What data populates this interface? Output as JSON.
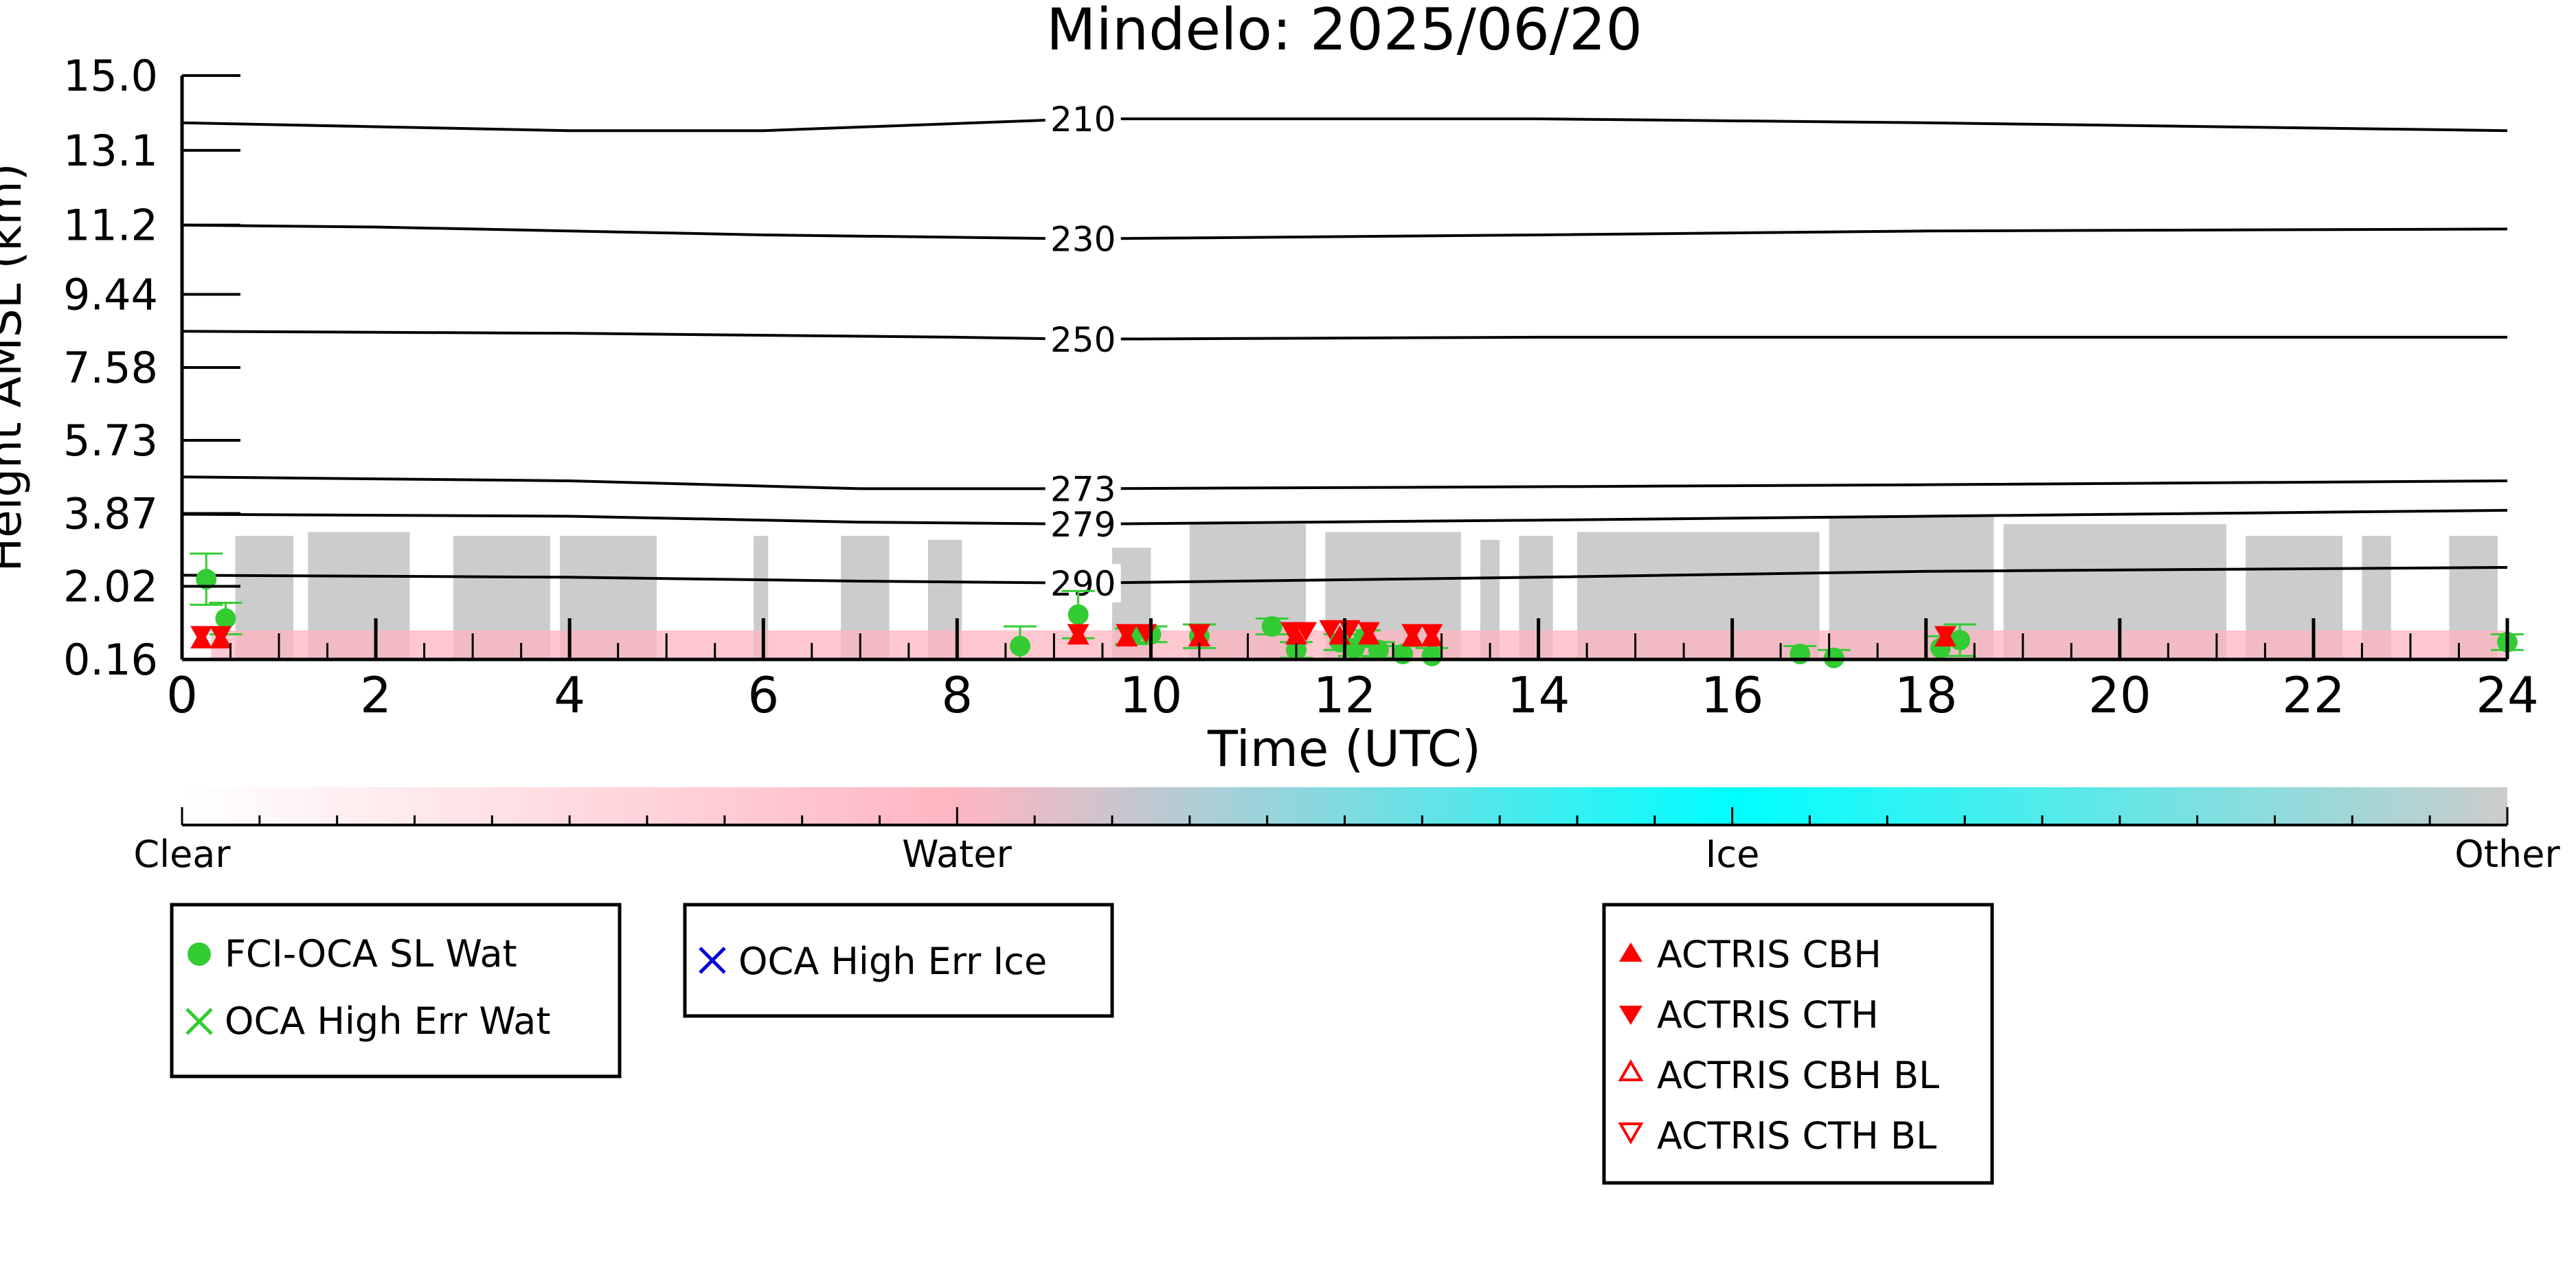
{
  "colors": {
    "marker_green": "#33cc33",
    "marker_red": "#ff0000",
    "marker_blue": "#0000dd",
    "cloud_other": "#cccccc",
    "cloud_water": "#ffb6c1",
    "cloud_ice": "#00ffff",
    "axis": "#000000"
  },
  "chart_data": {
    "type": "scatter",
    "title": "Mindelo: 2025/06/20",
    "xlabel": "Time (UTC)",
    "ylabel": "Height AMSL (km)",
    "xlim": [
      0,
      24
    ],
    "ylim": [
      0.16,
      15.0
    ],
    "xticks": [
      0,
      2,
      4,
      6,
      8,
      10,
      12,
      14,
      16,
      18,
      20,
      22,
      24
    ],
    "xtick_labels": [
      "0",
      "2",
      "4",
      "6",
      "8",
      "10",
      "12",
      "14",
      "16",
      "18",
      "20",
      "22",
      "24"
    ],
    "yticks": [
      0.16,
      2.02,
      3.87,
      5.73,
      7.58,
      9.44,
      11.2,
      13.1,
      15.0
    ],
    "ytick_labels": [
      "0.16",
      "2.02",
      "3.87",
      "5.73",
      "7.58",
      "9.44",
      "11.2",
      "13.1",
      "15.0"
    ],
    "grid": false,
    "temperature_contours": [
      {
        "label": "210",
        "points": [
          [
            0,
            13.8
          ],
          [
            2,
            13.7
          ],
          [
            4,
            13.6
          ],
          [
            6,
            13.6
          ],
          [
            9.3,
            13.9
          ],
          [
            14,
            13.9
          ],
          [
            18,
            13.8
          ],
          [
            24,
            13.6
          ]
        ]
      },
      {
        "label": "230",
        "points": [
          [
            0,
            11.2
          ],
          [
            2,
            11.15
          ],
          [
            4,
            11.05
          ],
          [
            6,
            10.95
          ],
          [
            9.3,
            10.85
          ],
          [
            14,
            10.95
          ],
          [
            18,
            11.05
          ],
          [
            24,
            11.1
          ]
        ]
      },
      {
        "label": "250",
        "points": [
          [
            0,
            8.5
          ],
          [
            4,
            8.45
          ],
          [
            8,
            8.35
          ],
          [
            9.3,
            8.3
          ],
          [
            14,
            8.35
          ],
          [
            18,
            8.35
          ],
          [
            24,
            8.35
          ]
        ]
      },
      {
        "label": "273",
        "points": [
          [
            0,
            4.8
          ],
          [
            4,
            4.7
          ],
          [
            7,
            4.5
          ],
          [
            9.3,
            4.5
          ],
          [
            14,
            4.55
          ],
          [
            18,
            4.6
          ],
          [
            24,
            4.7
          ]
        ]
      },
      {
        "label": "279",
        "points": [
          [
            0,
            3.85
          ],
          [
            4,
            3.8
          ],
          [
            7,
            3.65
          ],
          [
            9.3,
            3.6
          ],
          [
            14,
            3.7
          ],
          [
            18,
            3.8
          ],
          [
            24,
            3.95
          ]
        ]
      },
      {
        "label": "290",
        "points": [
          [
            0,
            2.3
          ],
          [
            4,
            2.25
          ],
          [
            7,
            2.15
          ],
          [
            9.3,
            2.1
          ],
          [
            14,
            2.25
          ],
          [
            18,
            2.4
          ],
          [
            24,
            2.5
          ]
        ]
      }
    ],
    "cloud_columns": [
      {
        "start": 0.55,
        "end": 1.15,
        "top": 3.3
      },
      {
        "start": 1.3,
        "end": 2.35,
        "top": 3.4
      },
      {
        "start": 2.8,
        "end": 3.8,
        "top": 3.3
      },
      {
        "start": 3.9,
        "end": 4.9,
        "top": 3.3
      },
      {
        "start": 5.9,
        "end": 6.05,
        "top": 3.3
      },
      {
        "start": 6.8,
        "end": 7.3,
        "top": 3.3
      },
      {
        "start": 7.7,
        "end": 8.05,
        "top": 3.2
      },
      {
        "start": 9.6,
        "end": 10.0,
        "top": 3.0
      },
      {
        "start": 10.4,
        "end": 11.6,
        "top": 3.6
      },
      {
        "start": 11.8,
        "end": 13.2,
        "top": 3.4
      },
      {
        "start": 13.4,
        "end": 13.6,
        "top": 3.2
      },
      {
        "start": 13.8,
        "end": 14.15,
        "top": 3.3
      },
      {
        "start": 14.4,
        "end": 16.9,
        "top": 3.4
      },
      {
        "start": 17.0,
        "end": 18.7,
        "top": 3.8
      },
      {
        "start": 18.8,
        "end": 21.1,
        "top": 3.6
      },
      {
        "start": 21.3,
        "end": 22.3,
        "top": 3.3
      },
      {
        "start": 22.5,
        "end": 22.8,
        "top": 3.3
      },
      {
        "start": 23.4,
        "end": 23.9,
        "top": 3.3
      }
    ],
    "water_layer": {
      "from": 0.16,
      "to": 0.9,
      "start": 0.3,
      "end": 24
    },
    "colorbar": {
      "labels": [
        "Clear",
        "Water",
        "Ice",
        "Other"
      ],
      "stops": [
        "#ffffff",
        "#ffb6c1",
        "#00ffff",
        "#cccccc"
      ]
    },
    "series": [
      {
        "name": "FCI-OCA SL Wat",
        "marker": "circle",
        "color": "#33cc33",
        "points": [
          {
            "x": 0.25,
            "y": 2.2,
            "err": 0.65
          },
          {
            "x": 0.45,
            "y": 1.2,
            "err": 0.4
          },
          {
            "x": 8.65,
            "y": 0.5,
            "err": 0.5
          },
          {
            "x": 9.25,
            "y": 1.3,
            "err": 0.6
          },
          {
            "x": 9.8,
            "y": 0.75,
            "err": 0.2
          },
          {
            "x": 10.0,
            "y": 0.8,
            "err": 0.2
          },
          {
            "x": 10.5,
            "y": 0.75,
            "err": 0.3
          },
          {
            "x": 11.25,
            "y": 1.0,
            "err": 0.2
          },
          {
            "x": 11.5,
            "y": 0.4,
            "err": 0.2
          },
          {
            "x": 11.95,
            "y": 0.6,
            "err": 0.2
          },
          {
            "x": 12.1,
            "y": 0.45,
            "err": 0.2
          },
          {
            "x": 12.2,
            "y": 0.7,
            "err": 0.2
          },
          {
            "x": 12.35,
            "y": 0.4,
            "err": 0.2
          },
          {
            "x": 12.6,
            "y": 0.3,
            "err": 0.2
          },
          {
            "x": 12.9,
            "y": 0.25,
            "err": 0.2
          },
          {
            "x": 16.7,
            "y": 0.3,
            "err": 0.2
          },
          {
            "x": 17.05,
            "y": 0.2,
            "err": 0.2
          },
          {
            "x": 18.15,
            "y": 0.45,
            "err": 0.3
          },
          {
            "x": 18.35,
            "y": 0.65,
            "err": 0.4
          },
          {
            "x": 24.0,
            "y": 0.6,
            "err": 0.2
          }
        ]
      },
      {
        "name": "OCA High Err Wat",
        "marker": "x",
        "color": "#33cc33",
        "points": []
      },
      {
        "name": "OCA High Err Ice",
        "marker": "x",
        "color": "#0000dd",
        "points": []
      },
      {
        "name": "ACTRIS CBH",
        "marker": "triangle-up",
        "color": "#ff0000",
        "points": [
          {
            "x": 0.2,
            "y": 0.65
          },
          {
            "x": 0.4,
            "y": 0.65
          },
          {
            "x": 9.25,
            "y": 0.75
          },
          {
            "x": 9.75,
            "y": 0.7
          },
          {
            "x": 10.5,
            "y": 0.7
          },
          {
            "x": 11.5,
            "y": 0.75
          },
          {
            "x": 11.95,
            "y": 0.75
          },
          {
            "x": 12.25,
            "y": 0.75
          },
          {
            "x": 12.7,
            "y": 0.7
          },
          {
            "x": 12.9,
            "y": 0.7
          },
          {
            "x": 18.2,
            "y": 0.7
          }
        ]
      },
      {
        "name": "ACTRIS CTH",
        "marker": "triangle-down",
        "color": "#ff0000",
        "points": [
          {
            "x": 0.2,
            "y": 0.8
          },
          {
            "x": 0.4,
            "y": 0.8
          },
          {
            "x": 9.25,
            "y": 0.85
          },
          {
            "x": 9.75,
            "y": 0.85
          },
          {
            "x": 9.95,
            "y": 0.85
          },
          {
            "x": 10.5,
            "y": 0.85
          },
          {
            "x": 11.45,
            "y": 0.9
          },
          {
            "x": 11.6,
            "y": 0.9
          },
          {
            "x": 11.85,
            "y": 0.95
          },
          {
            "x": 12.05,
            "y": 0.95
          },
          {
            "x": 12.25,
            "y": 0.9
          },
          {
            "x": 12.7,
            "y": 0.85
          },
          {
            "x": 12.9,
            "y": 0.85
          },
          {
            "x": 18.2,
            "y": 0.8
          }
        ]
      },
      {
        "name": "ACTRIS CBH BL",
        "marker": "triangle-up-open",
        "color": "#ff0000",
        "points": []
      },
      {
        "name": "ACTRIS CTH BL",
        "marker": "triangle-down-open",
        "color": "#ff0000",
        "points": []
      }
    ],
    "legends": [
      {
        "position": "bottom-left",
        "entries": [
          "FCI-OCA SL Wat",
          "OCA High Err Wat"
        ]
      },
      {
        "position": "bottom-center-left",
        "entries": [
          "OCA High Err Ice"
        ]
      },
      {
        "position": "bottom-right",
        "entries": [
          "ACTRIS CBH",
          "ACTRIS CTH",
          "ACTRIS CBH BL",
          "ACTRIS CTH BL"
        ]
      }
    ]
  }
}
